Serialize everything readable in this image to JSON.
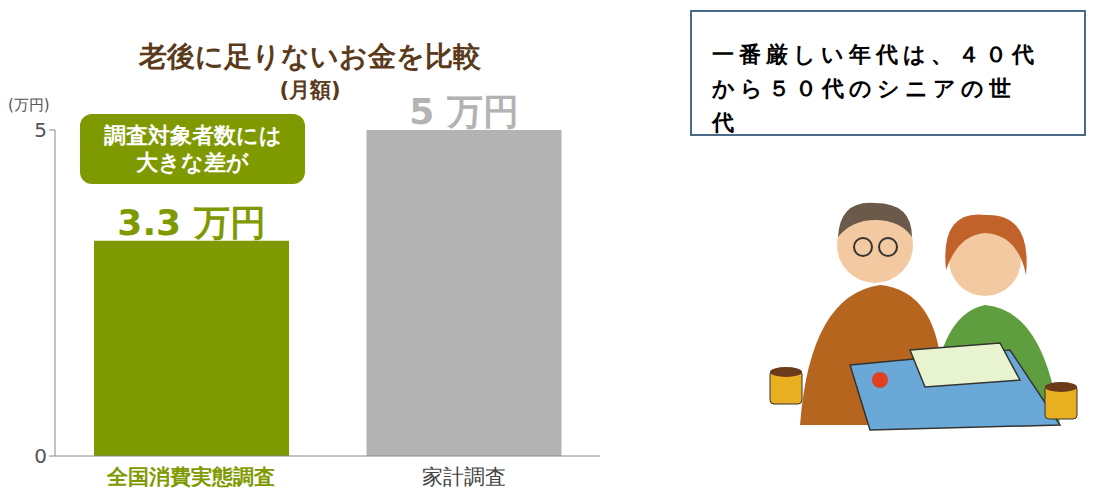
{
  "chart_data": {
    "type": "bar",
    "title": "老後に足りないお金を比較",
    "subtitle": "(月額)",
    "y_label": "(万円)",
    "categories": [
      "全国消費実態調査",
      "家計調査"
    ],
    "values": [
      3.3,
      5
    ],
    "value_labels": [
      "3.3 万円",
      "5 万円"
    ],
    "colors": [
      "#7f9900",
      "#b3b3b3"
    ],
    "ylim": [
      0,
      5
    ],
    "yticks": [
      0,
      5
    ],
    "data_labels": true,
    "grid": false,
    "annotation": "調査対象者数には大きな差が"
  },
  "text_box": "一番厳しい年代は、４０代から５０代のシニアの世代"
}
